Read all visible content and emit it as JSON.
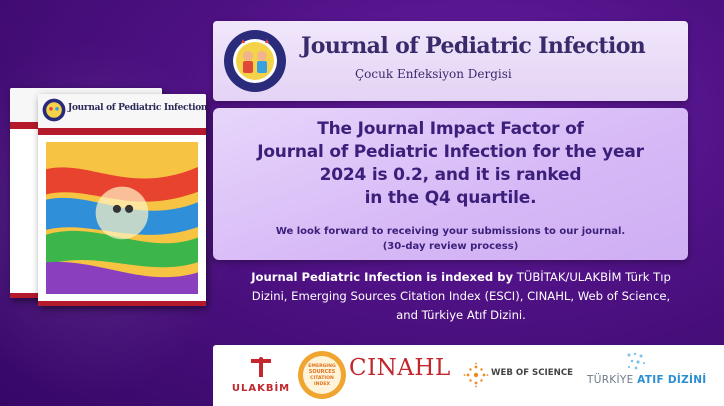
{
  "masthead": {
    "title": "Journal of Pediatric Infection",
    "subtitle": "Çocuk Enfeksiyon Dergisi"
  },
  "cover": {
    "title": "Journal of Pediatric Infection"
  },
  "impact": {
    "lines": [
      "The Journal Impact Factor of",
      "Journal of Pediatric Infection for the year",
      "2024 is 0.2, and it is ranked",
      "in the Q4 quartile."
    ],
    "note_line1": "We look forward to receiving your submissions to our journal.",
    "note_line2": "(30-day review process)"
  },
  "indexed": {
    "lead": "Journal Pediatric Infection is indexed by",
    "rest1": " TÜBİTAK/ULAKBİM Türk Tıp",
    "line2": "Dizini, Emerging Sources Citation Index (ESCI), CINAHL, Web of Science,",
    "line3": "and Türkiye Atıf Dizini."
  },
  "logos": {
    "ulakbim": "ULAKBİM",
    "esci_line1": "EMERGING",
    "esci_line2": "SOURCES",
    "esci_line3": "CITATION",
    "esci_line4": "INDEX",
    "cinahl": "CINAHL",
    "wos": "WEB OF SCIENCE",
    "atif_gray": "TÜRKİYE",
    "atif_blue": "ATIF DİZİNİ"
  },
  "colors": {
    "background": "#4e1183",
    "panel_text": "#3b1f7a",
    "accent_red": "#c1272d",
    "atif_blue": "#2a8fd2"
  }
}
